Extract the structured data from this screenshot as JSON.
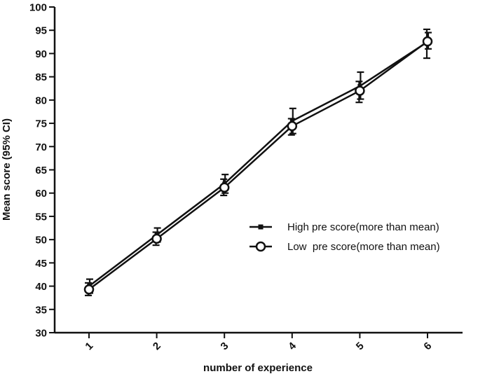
{
  "chart_data": {
    "type": "line",
    "title": "",
    "xlabel": "number of experience",
    "ylabel": "Mean score (95% CI)",
    "categories": [
      "1",
      "2",
      "3",
      "4",
      "5",
      "6"
    ],
    "ylim": [
      30,
      100
    ],
    "yticks": [
      "30",
      "35",
      "40",
      "45",
      "50",
      "55",
      "60",
      "65",
      "70",
      "75",
      "80",
      "85",
      "90",
      "95",
      "100"
    ],
    "grid": false,
    "legend_position": "center-right",
    "series": [
      {
        "name": "High pre score(more than mean)",
        "marker": "square",
        "color": "#111111",
        "values": [
          40.0,
          51.0,
          62.0,
          75.5,
          83.0,
          92.5
        ],
        "ci_low": [
          38.5,
          49.5,
          60.0,
          72.8,
          80.2,
          91.0
        ],
        "ci_high": [
          41.5,
          52.5,
          64.0,
          78.2,
          86.0,
          94.5
        ]
      },
      {
        "name": "Low  pre score(more than mean)",
        "marker": "circle-open",
        "color": "#111111",
        "values": [
          39.3,
          50.2,
          61.2,
          74.4,
          82.0,
          92.6
        ],
        "ci_low": [
          38.0,
          48.8,
          59.5,
          72.5,
          79.5,
          89.0
        ],
        "ci_high": [
          40.7,
          51.6,
          63.0,
          76.0,
          84.0,
          95.2
        ]
      }
    ]
  }
}
